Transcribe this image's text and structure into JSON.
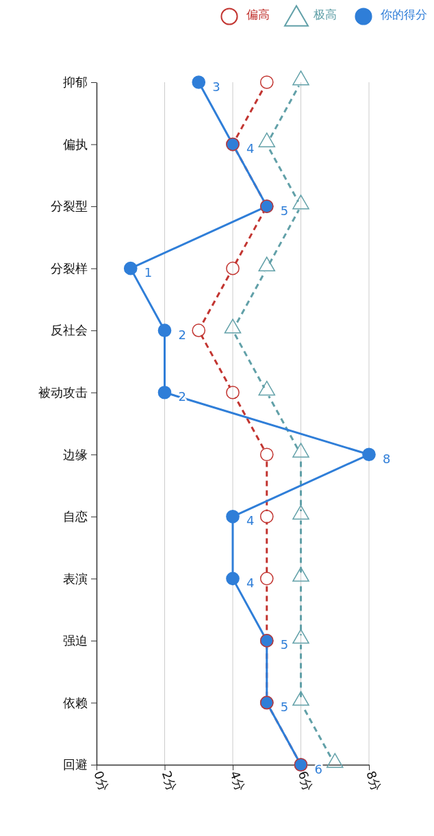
{
  "chart_data": {
    "type": "line",
    "orientation": "horizontal",
    "categories": [
      "抑郁",
      "偏执",
      "分裂型",
      "分裂样",
      "反社会",
      "被动攻击",
      "边缘",
      "自恋",
      "表演",
      "强迫",
      "依赖",
      "回避"
    ],
    "xlim": [
      0,
      8
    ],
    "xticks": [
      {
        "value": 0,
        "label": "0分"
      },
      {
        "value": 2,
        "label": "2分"
      },
      {
        "value": 4,
        "label": "4分"
      },
      {
        "value": 6,
        "label": "6分"
      },
      {
        "value": 8,
        "label": "8分"
      }
    ],
    "grid": "x",
    "legend": "top right",
    "series": [
      {
        "name": "偏高",
        "color": "#c23531",
        "marker": "circle",
        "line_style": "dashed",
        "values": [
          5,
          4,
          5,
          4,
          3,
          4,
          5,
          5,
          5,
          5,
          5,
          6
        ]
      },
      {
        "name": "极高",
        "color": "#61a0a8",
        "marker": "triangle",
        "line_style": "dashed",
        "values": [
          6,
          5,
          6,
          5,
          4,
          5,
          6,
          6,
          6,
          6,
          6,
          7
        ]
      },
      {
        "name": "你的得分",
        "color": "#2f7ed8",
        "marker": "circle",
        "line_style": "solid",
        "values": [
          3,
          4,
          5,
          1,
          2,
          2,
          8,
          4,
          4,
          5,
          5,
          6
        ],
        "value_labels": [
          "3",
          "4",
          "5",
          "1",
          "2",
          "2",
          "8",
          "4",
          "4",
          "5",
          "5",
          "6"
        ]
      }
    ]
  }
}
